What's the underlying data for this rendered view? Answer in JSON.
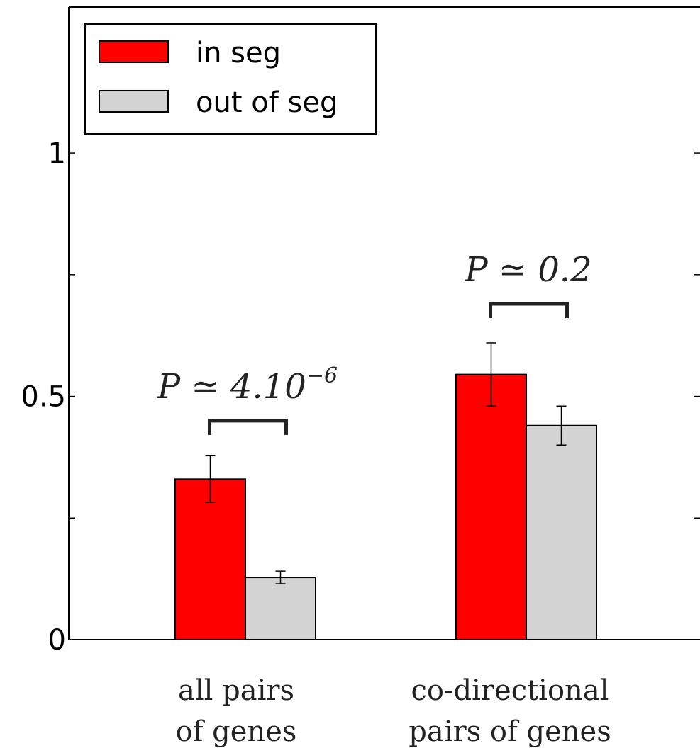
{
  "chart_data": {
    "type": "bar",
    "categories": [
      [
        "all pairs",
        "of genes"
      ],
      [
        "co-directional",
        "pairs of genes"
      ]
    ],
    "series": [
      {
        "name": "in seg",
        "color": "#ff0000",
        "values": [
          0.33,
          0.545
        ],
        "err": [
          0.048,
          0.065
        ]
      },
      {
        "name": "out of seg",
        "color": "#d3d3d3",
        "values": [
          0.128,
          0.44
        ],
        "err": [
          0.013,
          0.04
        ]
      }
    ],
    "ylim": [
      0,
      1.3
    ],
    "yticks": [
      {
        "value": 0,
        "label": "0"
      },
      {
        "value": 0.25,
        "label": ""
      },
      {
        "value": 0.5,
        "label": "0.5"
      },
      {
        "value": 0.75,
        "label": ""
      },
      {
        "value": 1,
        "label": "1"
      }
    ],
    "annotations": [
      {
        "category": 0,
        "base": "P ≃ 4.10",
        "sup": "−6",
        "bracket_level": 0.45
      },
      {
        "category": 1,
        "base": "P ≃ 0.2",
        "sup": "",
        "bracket_level": 0.69
      }
    ],
    "legend_position": "top-left",
    "grid": false,
    "xlabel": "",
    "ylabel": "",
    "title": ""
  }
}
